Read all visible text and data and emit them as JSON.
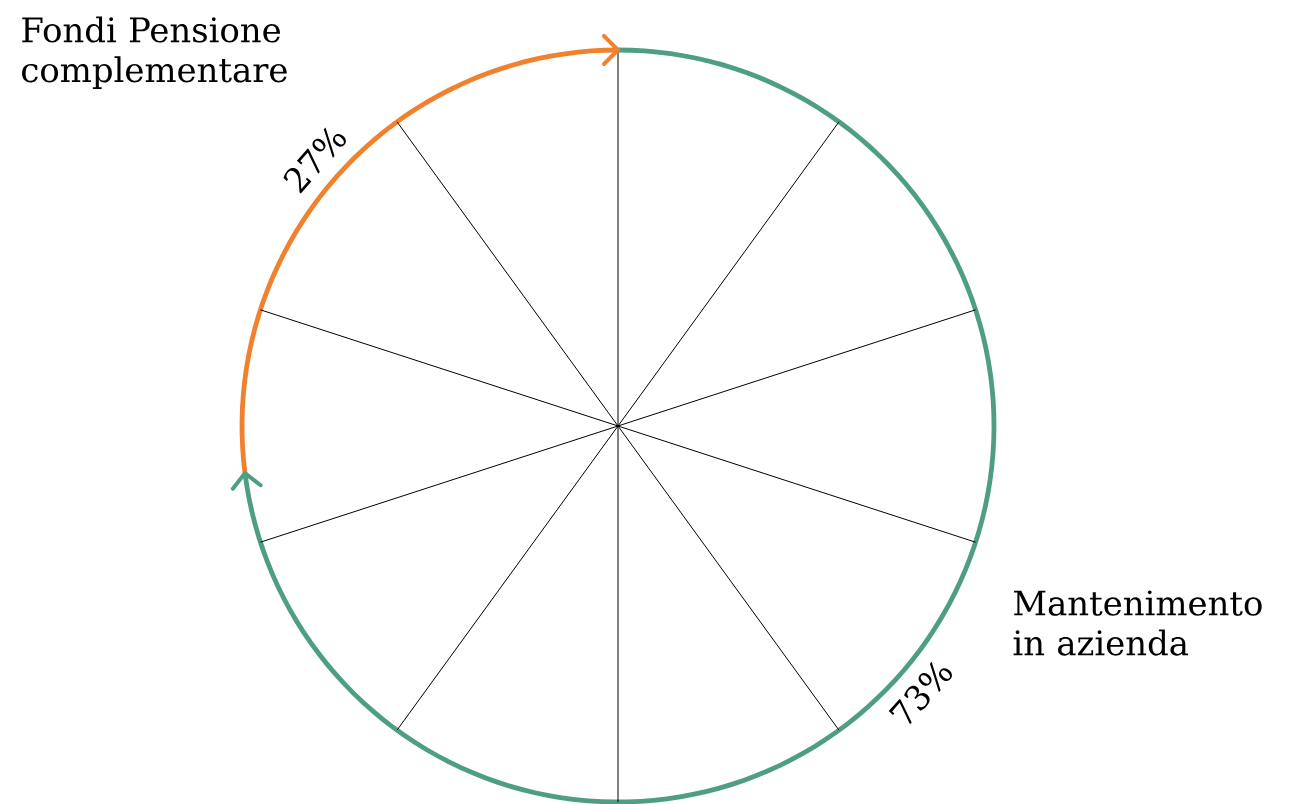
{
  "chart_data": {
    "type": "donut",
    "categories": [
      "Fondi Pensione complementare",
      "Mantenimento in azienda"
    ],
    "values": [
      27,
      73
    ],
    "colors": [
      "#f0812e",
      "#4e9e82"
    ],
    "value_labels": [
      "27%",
      "73%"
    ]
  }
}
